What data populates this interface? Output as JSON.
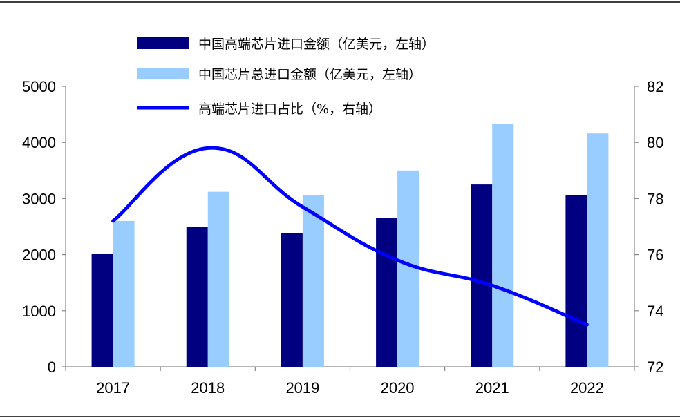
{
  "chart_data": {
    "type": "bar",
    "categories": [
      "2017",
      "2018",
      "2019",
      "2020",
      "2021",
      "2022"
    ],
    "series": [
      {
        "name": "中国高端芯片进口金额（亿美元，左轴）",
        "type": "bar",
        "axis": "left",
        "color": "#000080",
        "values": [
          2010,
          2490,
          2380,
          2660,
          3250,
          3060
        ]
      },
      {
        "name": "中国芯片总进口金额（亿美元，左轴）",
        "type": "bar",
        "axis": "left",
        "color": "#99CCFF",
        "values": [
          2600,
          3120,
          3060,
          3500,
          4330,
          4160
        ]
      },
      {
        "name": "高端芯片进口占比（%，右轴）",
        "type": "line",
        "axis": "right",
        "color": "#0000FF",
        "values": [
          77.2,
          79.8,
          77.7,
          75.8,
          74.9,
          73.5
        ]
      }
    ],
    "y_left": {
      "min": 0,
      "max": 5000,
      "ticks": [
        "0",
        "1000",
        "2000",
        "3000",
        "4000",
        "5000"
      ]
    },
    "y_right": {
      "min": 72,
      "max": 82,
      "ticks": [
        "72",
        "74",
        "76",
        "78",
        "80",
        "82"
      ]
    },
    "legend_position": "top"
  }
}
